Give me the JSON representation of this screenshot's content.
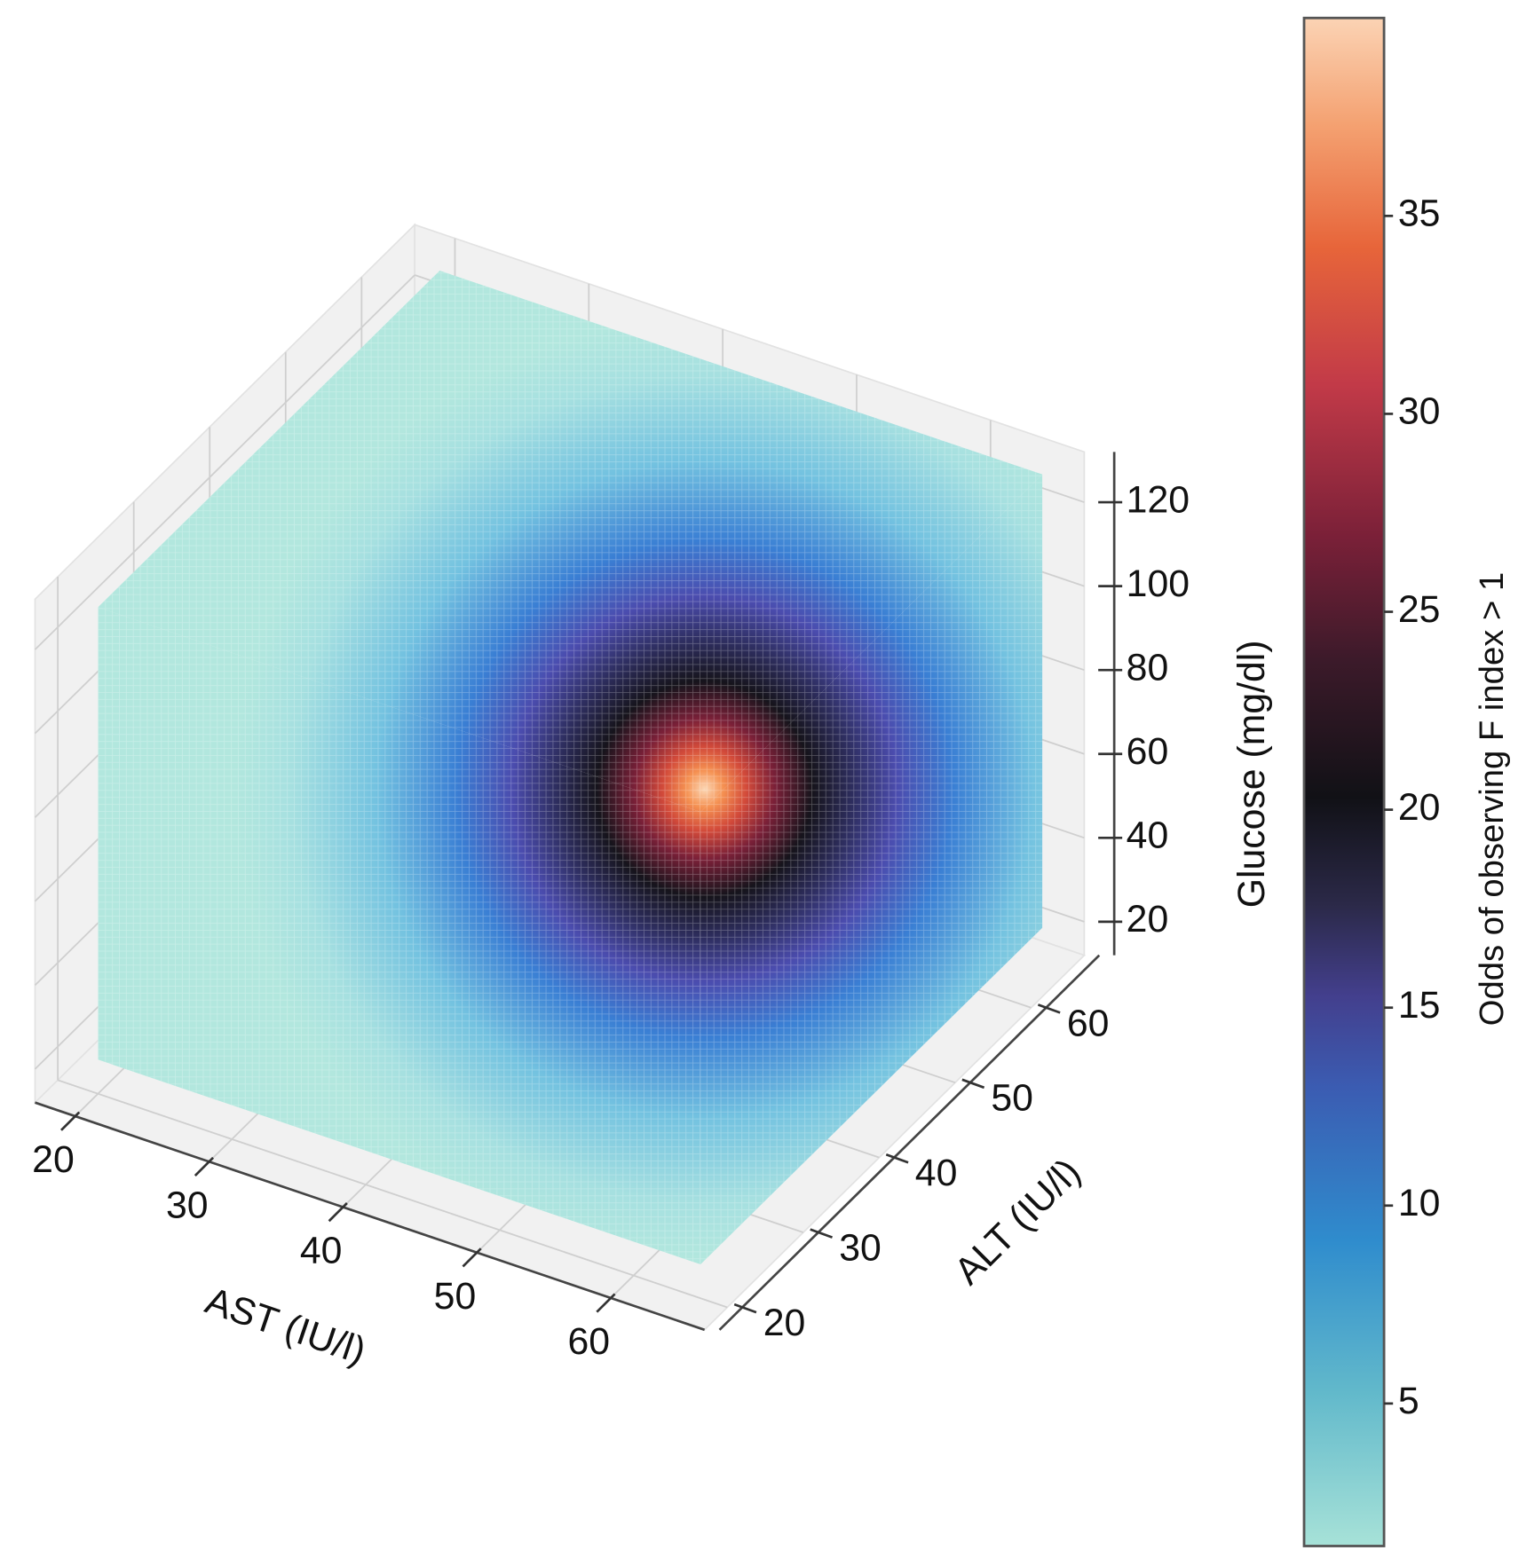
{
  "chart_data": {
    "type": "scatter3d",
    "xlabel": "AST (IU/l)",
    "ylabel": "ALT (IU/l)",
    "zlabel": "Glucose (mg/dl)",
    "xlim": [
      17,
      67
    ],
    "ylim": [
      17,
      67
    ],
    "zlim": [
      12,
      132
    ],
    "xticks": [
      20,
      30,
      40,
      50,
      60
    ],
    "yticks": [
      20,
      30,
      40,
      50,
      60
    ],
    "zticks": [
      20,
      40,
      60,
      80,
      100,
      120
    ],
    "colorbar": {
      "label": "Odds of observing F index > 1",
      "lim": [
        1.4,
        40
      ],
      "ticks": [
        5,
        10,
        15,
        20,
        25,
        30,
        35
      ]
    },
    "grid": true
  }
}
